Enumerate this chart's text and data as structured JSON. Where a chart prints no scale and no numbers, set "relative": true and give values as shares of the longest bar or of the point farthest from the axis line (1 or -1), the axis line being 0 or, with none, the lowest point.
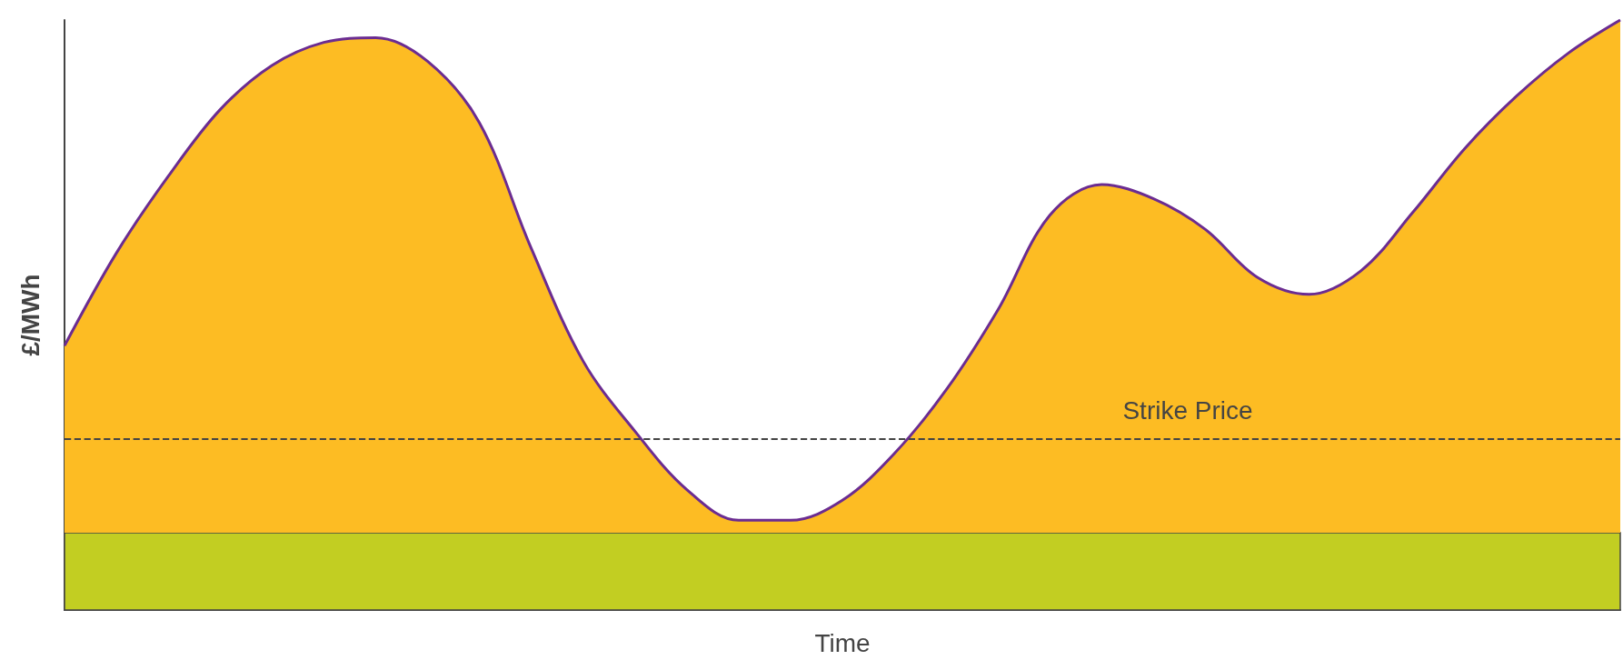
{
  "chart_data": {
    "type": "area",
    "relative": true,
    "xlabel": "Time",
    "ylabel": "£/MWh",
    "categories": [
      null,
      null,
      null,
      null,
      null,
      null,
      null,
      null,
      null,
      null,
      null,
      null,
      null,
      null,
      null,
      null,
      null,
      null,
      null,
      null,
      null,
      null,
      null,
      null,
      null,
      null,
      null,
      null,
      null,
      null,
      null
    ],
    "series": [
      {
        "color": "#fdbc23",
        "values": [
          0.448,
          0.605,
          0.735,
          0.848,
          0.923,
          0.962,
          0.97,
          0.93,
          0.826,
          0.613,
          0.422,
          0.303,
          0.204,
          0.152,
          0.152,
          0.186,
          0.265,
          0.373,
          0.509,
          0.669,
          0.721,
          0.697,
          0.645,
          0.564,
          0.535,
          0.575,
          0.674,
          0.782,
          0.871,
          0.944,
          1
        ]
      },
      {
        "type": "line",
        "color": "#6b2c91",
        "values": [
          0.448,
          0.605,
          0.735,
          0.848,
          0.923,
          0.962,
          0.97,
          0.93,
          0.826,
          0.613,
          0.422,
          0.303,
          0.204,
          0.152,
          0.152,
          0.186,
          0.265,
          0.373,
          0.509,
          0.669,
          0.721,
          0.697,
          0.645,
          0.564,
          0.535,
          0.575,
          0.674,
          0.782,
          0.871,
          0.944,
          1
        ]
      }
    ],
    "ref_lines": [
      {
        "axis": "y",
        "value": 0.29,
        "label": "Strike Price",
        "color": "#444444",
        "line_style": "dashed"
      }
    ],
    "bands": [
      {
        "axis": "y",
        "from": 0,
        "to": 0.131,
        "color": "#c2ce22"
      }
    ],
    "grid": false,
    "marker": "none"
  }
}
